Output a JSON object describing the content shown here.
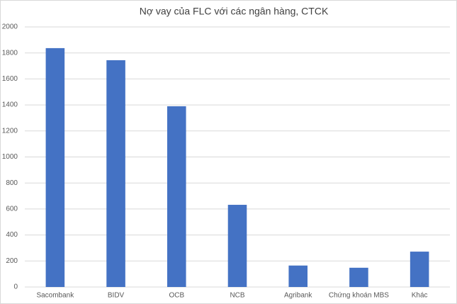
{
  "chart_data": {
    "type": "bar",
    "title": "Nợ vay của FLC với các ngân hàng, CTCK",
    "categories": [
      "Sacombank",
      "BIDV",
      "OCB",
      "NCB",
      "Agribank",
      "Chứng khoán MBS",
      "Khác"
    ],
    "values": [
      1837,
      1744,
      1390,
      632,
      165,
      148,
      272
    ],
    "color": "#4472c4",
    "ylim": [
      0,
      2000
    ],
    "yticks": [
      0,
      200,
      400,
      600,
      800,
      1000,
      1200,
      1400,
      1600,
      1800,
      2000
    ],
    "grid": true
  }
}
